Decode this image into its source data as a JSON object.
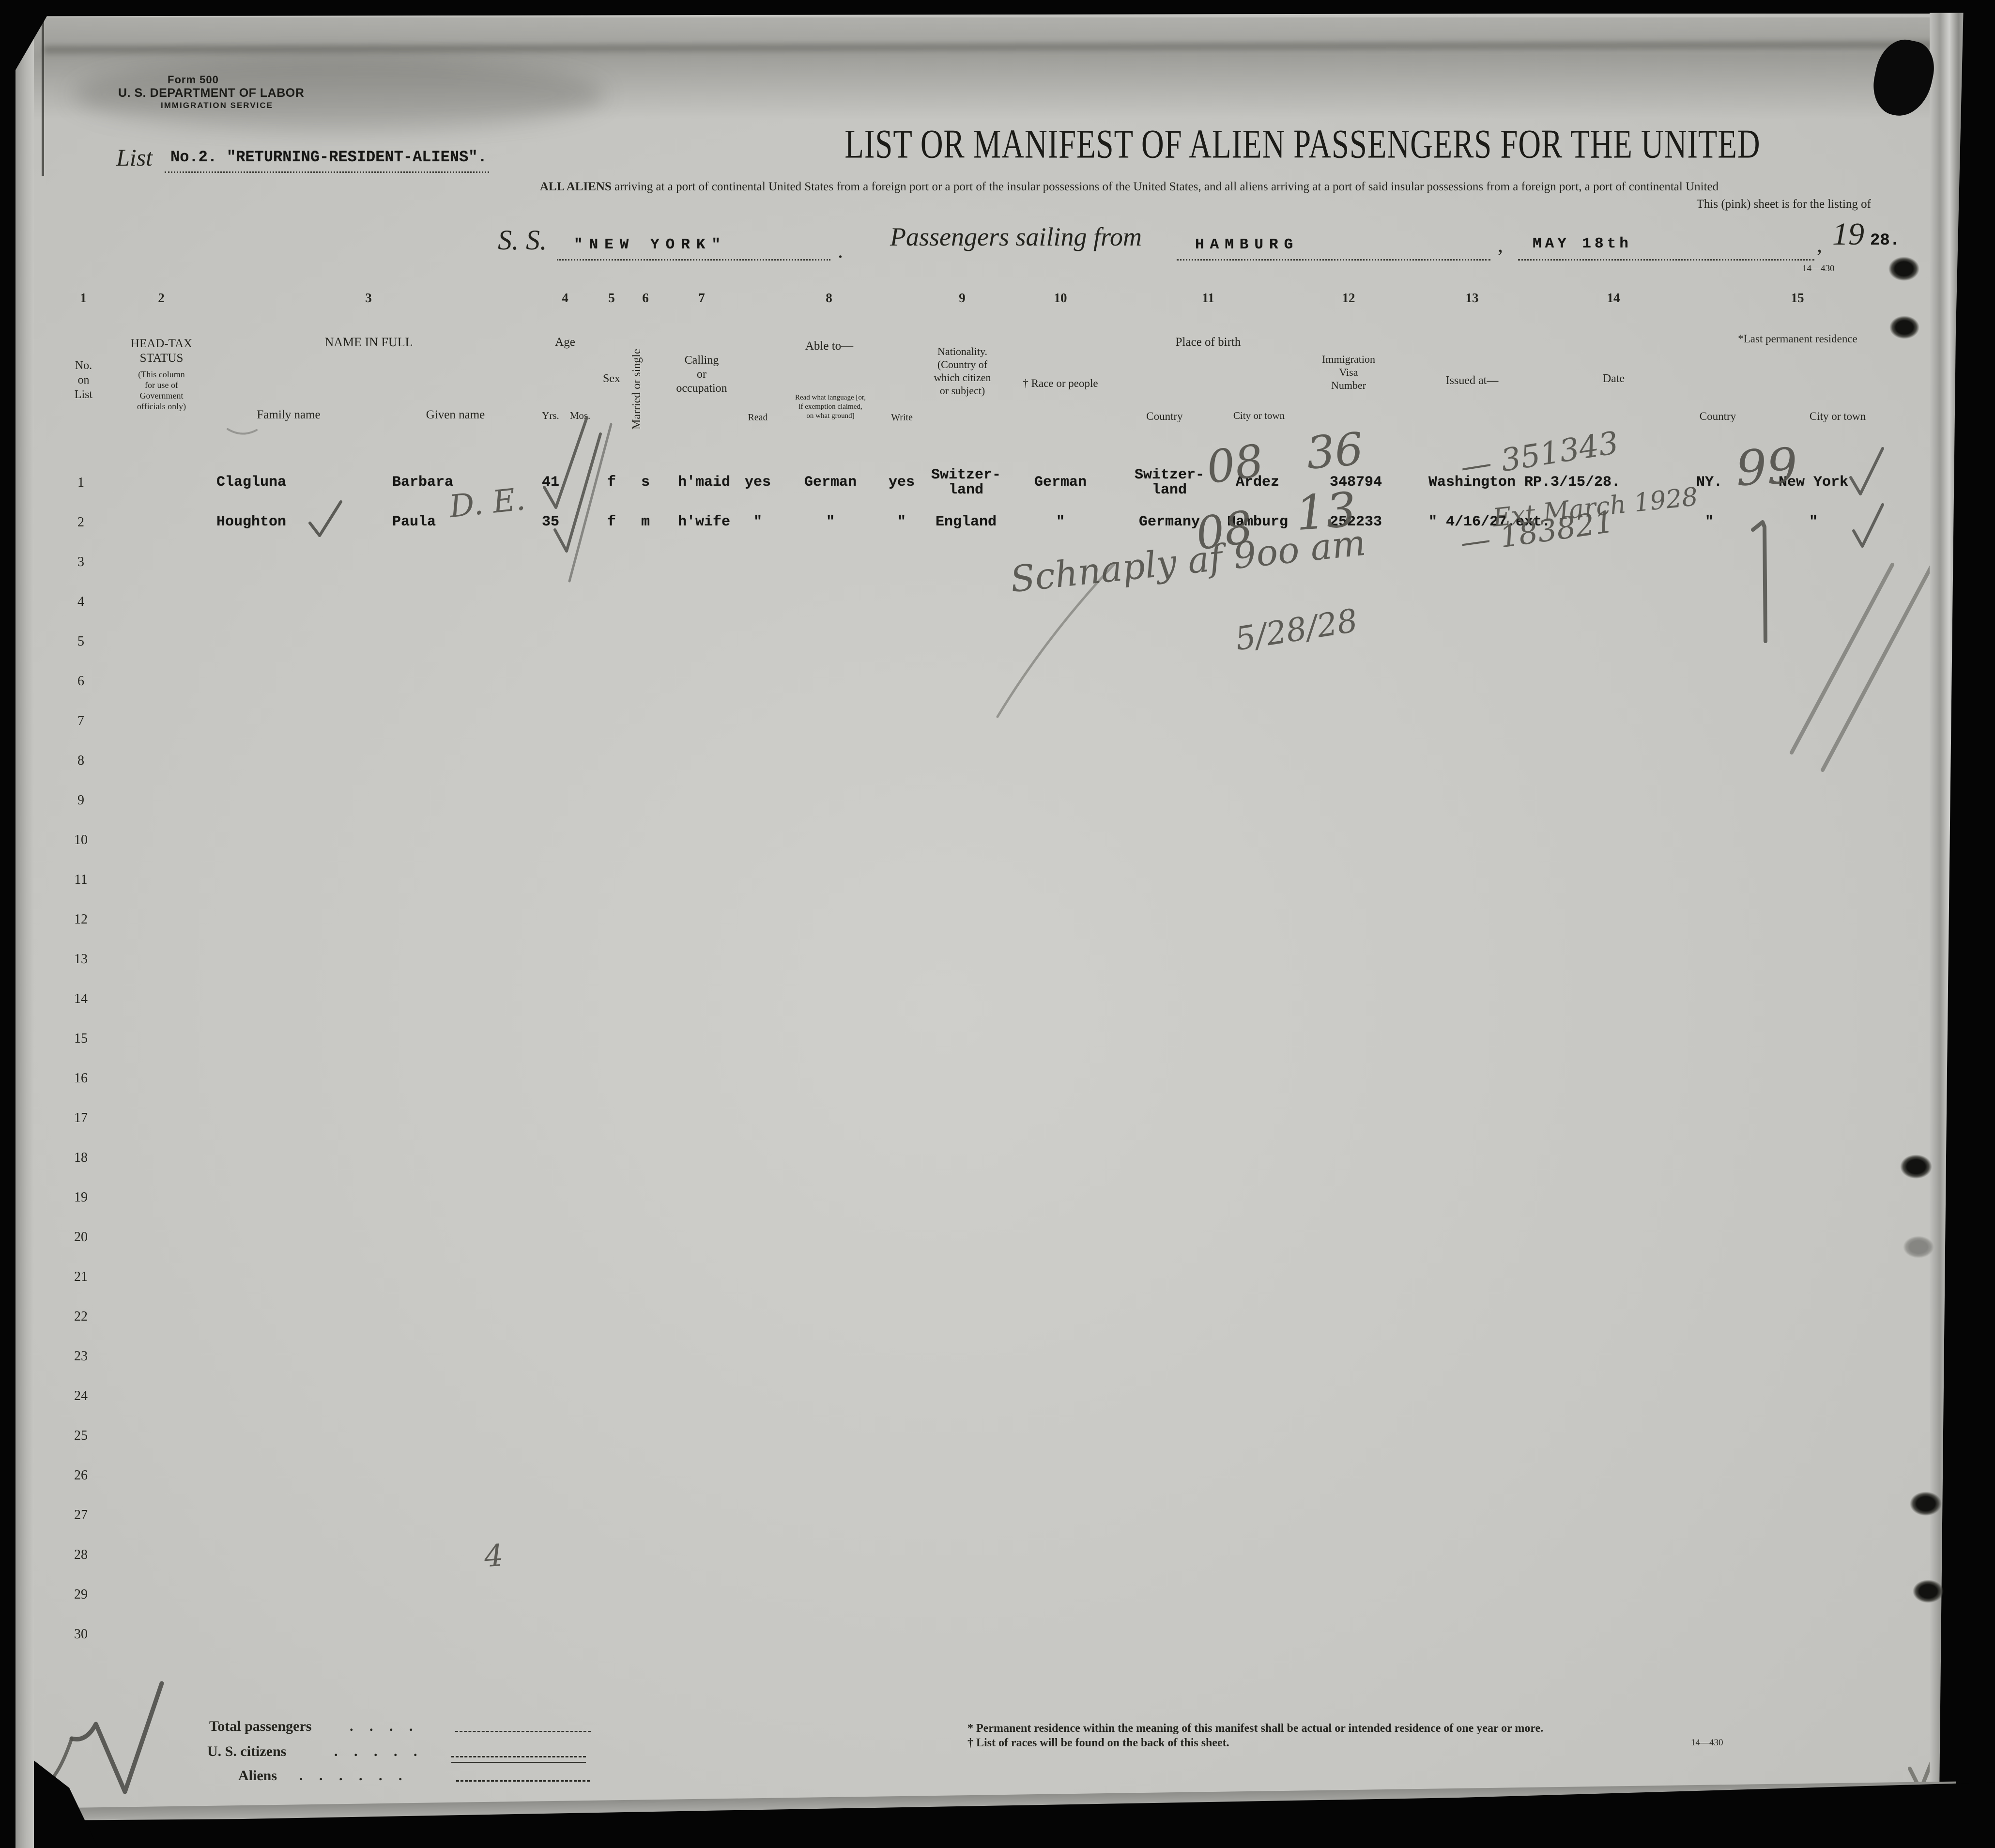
{
  "form_header": {
    "form_no": "Form 500",
    "department": "U. S. DEPARTMENT OF LABOR",
    "service": "IMMIGRATION SERVICE"
  },
  "list_line": {
    "list_label": "List",
    "list_no": "No.2.",
    "list_title": "\"RETURNING-RESIDENT-ALIENS\"."
  },
  "title": "LIST OR MANIFEST OF ALIEN PASSENGERS FOR THE UNITED",
  "subtitle": {
    "lead": "ALL ALIENS",
    "rest": " arriving at a port of continental United States from a foreign port or a port of the insular possessions of the United States, and all aliens arriving at a port of said insular possessions from a foreign port, a port of continental United",
    "line2": "This (pink) sheet is for the listing of"
  },
  "sailing_line": {
    "ss_label": "S. S.",
    "ship_name": "\"NEW YORK\"",
    "period": ".",
    "passengers_label": "Passengers sailing from",
    "port": "HAMBURG",
    "comma1": ",",
    "sail_date": "MAY 18th",
    "comma2": ",",
    "year_printed": "19",
    "year_typed": "28."
  },
  "plate_marks": {
    "top": "14—430",
    "bottom": "14—430"
  },
  "table": {
    "column_numbers": [
      "1",
      "2",
      "3",
      "4",
      "5",
      "6",
      "7",
      "8",
      "9",
      "10",
      "11",
      "12",
      "13",
      "14",
      "15"
    ],
    "headers": {
      "no": "No.\non\nList",
      "headtax_title": "HEAD-TAX\nSTATUS",
      "headtax_note": "(This column\nfor use of\nGovernment\nofficials only)",
      "name_group": "NAME IN FULL",
      "family": "Family name",
      "given": "Given name",
      "age_group": "Age",
      "yrs": "Yrs.",
      "mos": "Mos.",
      "sex": "Sex",
      "married": "Married or single",
      "calling": "Calling\nor\noccupation",
      "able_group": "Able to—",
      "read": "Read",
      "read_lang": "Read what language [or,\nif exemption claimed,\non what ground]",
      "write": "Write",
      "nationality": "Nationality.\n(Country of\nwhich citizen\nor subject)",
      "race": "† Race or people",
      "birth_group": "Place of birth",
      "birth_country": "Country",
      "birth_city": "City or town",
      "visa": "Immigration\nVisa\nNumber",
      "issued": "Issued at—",
      "date": "Date",
      "residence_group": "*Last permanent residence",
      "res_country": "Country",
      "res_city": "City or town"
    },
    "row_numbers": [
      "1",
      "2",
      "3",
      "4",
      "5",
      "6",
      "7",
      "8",
      "9",
      "10",
      "11",
      "12",
      "13",
      "14",
      "15",
      "16",
      "17",
      "18",
      "19",
      "20",
      "21",
      "22",
      "23",
      "24",
      "25",
      "26",
      "27",
      "28",
      "29",
      "30"
    ],
    "rows": [
      {
        "no": "1",
        "family": "Clagluna",
        "given": "Barbara",
        "yrs": "41",
        "sex": "f",
        "marital": "s",
        "calling": "h'maid",
        "read": "yes",
        "language": "German",
        "write": "yes",
        "nationality": "Switzer-\nland",
        "race": "German",
        "birth_country": "Switzer-\nland",
        "birth_city": "Ardez",
        "visa": "348794",
        "issued_date": "Washington RP.3/15/28.",
        "res_country": "NY.",
        "res_city": "New York"
      },
      {
        "no": "2",
        "family": "Houghton",
        "given": "Paula",
        "yrs": "35",
        "sex": "f",
        "marital": "m",
        "calling": "h'wife",
        "read": "\"",
        "language": "\"",
        "write": "\"",
        "nationality": "England",
        "race": "\"",
        "birth_country": "Germany",
        "birth_city": "Hamburg",
        "visa": "252233",
        "issued_date": "\"  4/16/27.ext.",
        "res_country": "\"",
        "res_city": "\""
      }
    ]
  },
  "handwriting": {
    "given2_note": "D. E.",
    "r1_country": "08",
    "r1_city": "36",
    "r2_country": "08",
    "r2_city": "13",
    "r1_visa": "— 351343",
    "r2_visa": "— 183821",
    "date_note": "Ext March 1928",
    "r1_tally": "99",
    "note1": "Schnaply af 9oo am",
    "note2": "5/28/28",
    "row29_mark": "4",
    "corner_mark": "u"
  },
  "totals": {
    "label1": "Total passengers",
    "dots1": ".  .  .  .",
    "label2": "U. S. citizens",
    "dots2": ".  .  .  .  .",
    "label3": "Aliens",
    "dots3": ".  .  .  .  .  ."
  },
  "footnotes": {
    "f1": "* Permanent residence within the meaning of this manifest shall be actual or intended residence of one year or more.",
    "f2": "† List of races will be found on the back of this sheet."
  },
  "icons": {
    "pencil_check": "check-mark",
    "punch_hole": "punch-hole"
  }
}
